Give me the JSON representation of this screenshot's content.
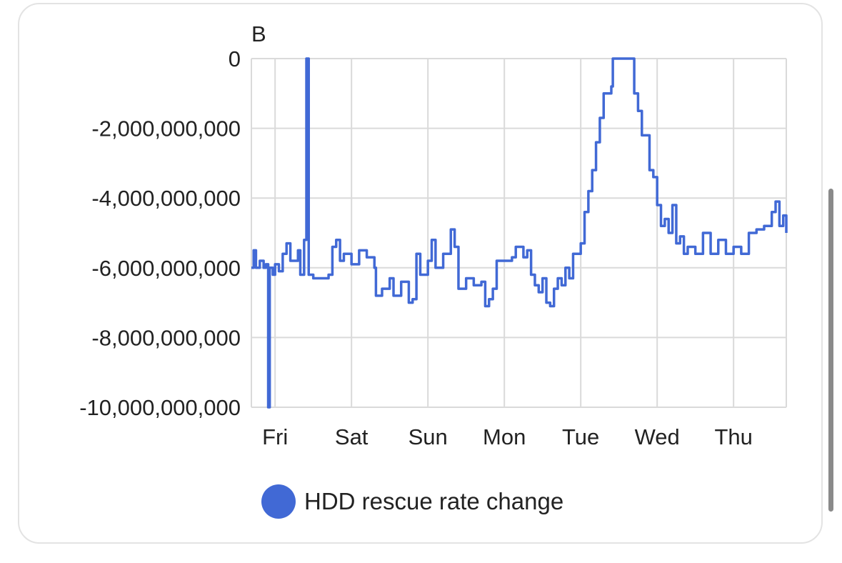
{
  "chart_data": {
    "type": "line",
    "title": "",
    "unit_label": "B",
    "xlabel": "",
    "ylabel": "B",
    "ylim": [
      -10000000000,
      0
    ],
    "xlim_days": [
      -0.31,
      6.69
    ],
    "yticks": [
      0,
      -2000000000,
      -4000000000,
      -6000000000,
      -8000000000,
      -10000000000
    ],
    "ytick_labels": [
      "0",
      "-2,000,000,000",
      "-4,000,000,000",
      "-6,000,000,000",
      "-8,000,000,000",
      "-10,000,000,000"
    ],
    "xtick_labels": [
      "Fri",
      "Sat",
      "Sun",
      "Mon",
      "Tue",
      "Wed",
      "Thu"
    ],
    "grid": true,
    "legend_position": "bottom",
    "series": [
      {
        "name": "HDD rescue rate change",
        "color": "#4169d5",
        "x_days": [
          -0.31,
          -0.28,
          -0.25,
          -0.2,
          -0.15,
          -0.12,
          -0.09,
          -0.08,
          -0.07,
          -0.03,
          0,
          0.05,
          0.1,
          0.15,
          0.2,
          0.3,
          0.33,
          0.38,
          0.41,
          0.44,
          0.5,
          0.6,
          0.7,
          0.75,
          0.8,
          0.85,
          0.9,
          1.0,
          1.1,
          1.2,
          1.3,
          1.32,
          1.4,
          1.5,
          1.55,
          1.65,
          1.75,
          1.8,
          1.85,
          1.9,
          2.0,
          2.05,
          2.1,
          2.2,
          2.3,
          2.35,
          2.4,
          2.5,
          2.6,
          2.7,
          2.75,
          2.8,
          2.85,
          2.9,
          3.0,
          3.1,
          3.15,
          3.25,
          3.3,
          3.35,
          3.4,
          3.45,
          3.5,
          3.55,
          3.6,
          3.65,
          3.7,
          3.75,
          3.8,
          3.85,
          3.9,
          4.0,
          4.05,
          4.1,
          4.15,
          4.2,
          4.25,
          4.3,
          4.4,
          4.42,
          4.65,
          4.7,
          4.75,
          4.8,
          4.88,
          4.9,
          4.95,
          5.0,
          5.05,
          5.1,
          5.15,
          5.2,
          5.25,
          5.3,
          5.35,
          5.4,
          5.5,
          5.6,
          5.7,
          5.8,
          5.9,
          6.0,
          6.1,
          6.2,
          6.3,
          6.4,
          6.5,
          6.55,
          6.6,
          6.65,
          6.69
        ],
        "values_billions": [
          -6.0,
          -5.5,
          -6.0,
          -5.8,
          -6.0,
          -5.9,
          -10,
          -10,
          -6.0,
          -6.2,
          -5.9,
          -6.1,
          -5.6,
          -5.3,
          -5.8,
          -5.5,
          -6.2,
          -5.2,
          0,
          -6.2,
          -6.3,
          -6.3,
          -6.2,
          -5.4,
          -5.2,
          -5.8,
          -5.6,
          -5.9,
          -5.5,
          -5.7,
          -6.0,
          -6.8,
          -6.6,
          -6.3,
          -6.8,
          -6.4,
          -7.0,
          -6.9,
          -5.6,
          -6.2,
          -5.8,
          -5.2,
          -6.0,
          -5.6,
          -4.9,
          -5.4,
          -6.6,
          -6.3,
          -6.5,
          -6.4,
          -7.1,
          -6.9,
          -6.6,
          -5.8,
          -5.8,
          -5.7,
          -5.4,
          -5.7,
          -5.5,
          -6.2,
          -6.5,
          -6.7,
          -6.3,
          -7.0,
          -7.1,
          -6.6,
          -6.3,
          -6.5,
          -6.0,
          -6.3,
          -5.6,
          -5.3,
          -4.4,
          -3.8,
          -3.2,
          -2.4,
          -1.7,
          -1.0,
          -0.8,
          0,
          0,
          -1.0,
          -1.5,
          -2.2,
          -2.2,
          -3.2,
          -3.4,
          -4.2,
          -4.8,
          -4.6,
          -5.0,
          -4.2,
          -5.3,
          -5.1,
          -5.6,
          -5.4,
          -5.6,
          -5.0,
          -5.6,
          -5.2,
          -5.6,
          -5.4,
          -5.6,
          -5.0,
          -4.9,
          -4.8,
          -4.4,
          -4.1,
          -4.8,
          -4.5,
          -5.0
        ]
      }
    ]
  }
}
